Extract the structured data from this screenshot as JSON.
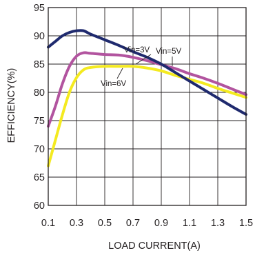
{
  "chart_data": {
    "type": "line",
    "title": "",
    "xlabel": "LOAD CURRENT(A)",
    "ylabel": "EFFICIENCY(%)",
    "xlim": [
      0.1,
      1.5
    ],
    "ylim": [
      60,
      95
    ],
    "xticks": [
      "0.1",
      "0.3",
      "0.5",
      "0.7",
      "0.9",
      "1.1",
      "1.3",
      "1.5"
    ],
    "yticks": [
      "60",
      "65",
      "70",
      "75",
      "80",
      "85",
      "90",
      "95"
    ],
    "grid": true,
    "series": [
      {
        "name": "Vin=3V",
        "color": "#1f2a6e",
        "x": [
          0.1,
          0.15,
          0.2,
          0.25,
          0.3,
          0.35,
          0.4,
          0.5,
          0.6,
          0.7,
          0.8,
          0.9,
          1.0,
          1.1,
          1.2,
          1.3,
          1.4,
          1.5
        ],
        "y": [
          88.0,
          89.0,
          90.0,
          90.6,
          90.9,
          90.9,
          90.3,
          89.3,
          88.3,
          87.2,
          86.2,
          85.0,
          83.5,
          82.0,
          80.5,
          79.0,
          77.5,
          76.1
        ]
      },
      {
        "name": "Vin=5V",
        "color": "#b2549f",
        "x": [
          0.1,
          0.15,
          0.2,
          0.25,
          0.3,
          0.35,
          0.4,
          0.5,
          0.6,
          0.7,
          0.8,
          0.9,
          1.0,
          1.1,
          1.2,
          1.3,
          1.4,
          1.5
        ],
        "y": [
          74.0,
          77.5,
          81.5,
          84.6,
          86.4,
          87.0,
          86.9,
          86.7,
          86.6,
          86.2,
          85.6,
          84.9,
          84.2,
          83.3,
          82.5,
          81.6,
          80.6,
          79.6
        ]
      },
      {
        "name": "Vin=6V",
        "color": "#f4ea20",
        "x": [
          0.1,
          0.15,
          0.2,
          0.25,
          0.3,
          0.35,
          0.4,
          0.5,
          0.6,
          0.7,
          0.8,
          0.9,
          1.0,
          1.1,
          1.2,
          1.3,
          1.4,
          1.5
        ],
        "y": [
          67.0,
          71.5,
          76.0,
          80.0,
          82.6,
          84.0,
          84.4,
          84.6,
          84.6,
          84.6,
          84.3,
          83.8,
          83.0,
          82.3,
          81.6,
          80.7,
          79.9,
          79.1
        ]
      }
    ],
    "annotations": [
      "Vin=3V",
      "Vin=5V",
      "Vin=6V"
    ]
  }
}
